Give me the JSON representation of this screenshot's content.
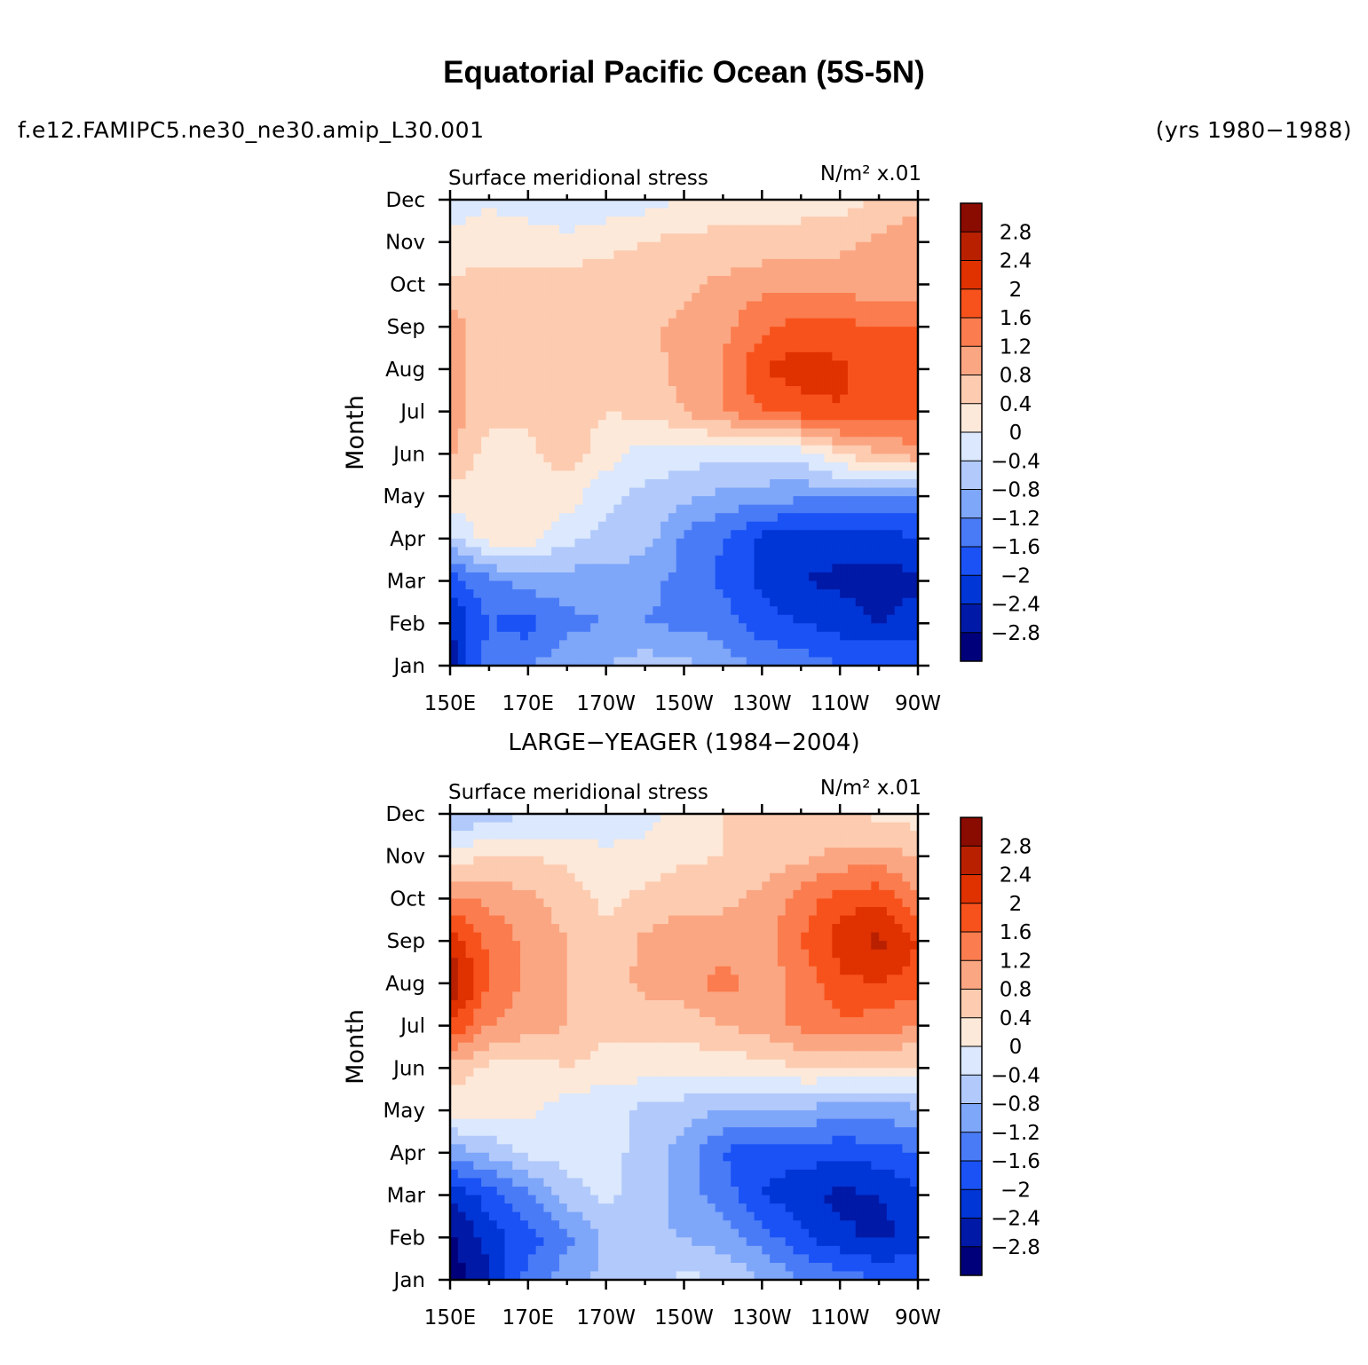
{
  "header": {
    "title": "Equatorial Pacific Ocean (5S-5N)",
    "case_name": "f.e12.FAMIPC5.ne30_ne30.amip_L30.001",
    "years": "(yrs 1980−1988)"
  },
  "observations_title": "LARGE−YEAGER (1984−2004)",
  "colormap": [
    "#00007a",
    "#0019a6",
    "#0035d6",
    "#1a52f5",
    "#4a7bf7",
    "#7ea6f9",
    "#b2c9fb",
    "#dbe8fd",
    "#fde9d9",
    "#fdcbb0",
    "#fba682",
    "#fb7c4e",
    "#f8521c",
    "#e03100",
    "#b82000",
    "#8a0b00"
  ],
  "chart_data": [
    {
      "type": "heatmap",
      "panel": "model",
      "title_left": "Surface meridional stress",
      "units": "N/m² x.01",
      "ylabel": "Month",
      "x_ticklabels": [
        "150E",
        "170E",
        "170W",
        "150W",
        "130W",
        "110W",
        "90W"
      ],
      "x_ticks_deg_east": [
        150,
        170,
        190,
        210,
        230,
        250,
        270
      ],
      "xlim": [
        150,
        270
      ],
      "y_ticklabels": [
        "Jan",
        "Feb",
        "Mar",
        "Apr",
        "May",
        "Jun",
        "Jul",
        "Aug",
        "Sep",
        "Oct",
        "Nov",
        "Dec"
      ],
      "contour_levels": [
        -2.8,
        -2.4,
        -2,
        -1.6,
        -1.2,
        -0.8,
        -0.4,
        0,
        0.4,
        0.8,
        1.2,
        1.6,
        2,
        2.4,
        2.8
      ],
      "colorbar_labels": [
        "2.8",
        "2.4",
        "2",
        "1.6",
        "1.2",
        "0.8",
        "0.4",
        "0",
        "−0.4",
        "−0.8",
        "−1.2",
        "−1.6",
        "−2",
        "−2.4",
        "−2.8"
      ],
      "longitudes": [
        150,
        160,
        170,
        180,
        190,
        200,
        210,
        220,
        230,
        240,
        250,
        260,
        270
      ],
      "values": [
        [
          -2.6,
          -1.4,
          -1.2,
          -1.0,
          -0.8,
          -0.6,
          -0.7,
          -1.0,
          -1.3,
          -1.4,
          -1.6,
          -1.6,
          -1.8
        ],
        [
          -2.4,
          -1.6,
          -1.8,
          -1.3,
          -1.2,
          -1.2,
          -1.3,
          -1.4,
          -1.8,
          -2.0,
          -2.2,
          -2.4,
          -2.2
        ],
        [
          -1.8,
          -1.3,
          -1.0,
          -1.0,
          -1.0,
          -1.1,
          -1.3,
          -1.7,
          -2.1,
          -2.4,
          -2.5,
          -2.6,
          -2.5
        ],
        [
          -0.5,
          0.2,
          0.2,
          -0.3,
          -0.5,
          -0.6,
          -1.3,
          -1.6,
          -2.1,
          -2.3,
          -2.2,
          -2.2,
          -2.0
        ],
        [
          0.2,
          0.3,
          0.3,
          0.2,
          -0.3,
          -0.5,
          -0.7,
          -0.9,
          -1.0,
          -1.1,
          -1.1,
          -1.2,
          -1.3
        ],
        [
          0.9,
          0.2,
          0.3,
          0.6,
          0.2,
          -0.2,
          -0.2,
          -0.3,
          -0.3,
          -0.2,
          0.4,
          0.8,
          1.1
        ],
        [
          1.0,
          0.5,
          0.5,
          0.6,
          0.4,
          0.5,
          0.8,
          1.2,
          1.6,
          1.8,
          2.0,
          1.7,
          1.7
        ],
        [
          1.0,
          0.5,
          0.5,
          0.6,
          0.6,
          0.7,
          0.9,
          1.2,
          2.0,
          2.2,
          2.1,
          1.7,
          1.8
        ],
        [
          1.0,
          0.5,
          0.5,
          0.6,
          0.6,
          0.7,
          0.9,
          1.1,
          1.5,
          1.8,
          1.7,
          1.6,
          1.6
        ],
        [
          0.5,
          0.5,
          0.5,
          0.6,
          0.6,
          0.6,
          0.7,
          0.9,
          1.1,
          1.1,
          1.0,
          1.0,
          1.0
        ],
        [
          0.1,
          0.3,
          0.2,
          0.1,
          0.3,
          0.4,
          0.5,
          0.5,
          0.5,
          0.6,
          0.7,
          0.9,
          1.0
        ],
        [
          -0.2,
          -0.1,
          -0.2,
          -0.3,
          -0.3,
          -0.2,
          0.1,
          0.2,
          0.2,
          0.2,
          0.2,
          0.5,
          0.7
        ]
      ]
    },
    {
      "type": "heatmap",
      "panel": "observations",
      "title_left": "Surface meridional stress",
      "units": "N/m² x.01",
      "ylabel": "Month",
      "x_ticklabels": [
        "150E",
        "170E",
        "170W",
        "150W",
        "130W",
        "110W",
        "90W"
      ],
      "x_ticks_deg_east": [
        150,
        170,
        190,
        210,
        230,
        250,
        270
      ],
      "xlim": [
        150,
        270
      ],
      "y_ticklabels": [
        "Jan",
        "Feb",
        "Mar",
        "Apr",
        "May",
        "Jun",
        "Jul",
        "Aug",
        "Sep",
        "Oct",
        "Nov",
        "Dec"
      ],
      "contour_levels": [
        -2.8,
        -2.4,
        -2,
        -1.6,
        -1.2,
        -0.8,
        -0.4,
        0,
        0.4,
        0.8,
        1.2,
        1.6,
        2,
        2.4,
        2.8
      ],
      "colorbar_labels": [
        "2.8",
        "2.4",
        "2",
        "1.6",
        "1.2",
        "0.8",
        "0.4",
        "0",
        "−0.4",
        "−0.8",
        "−1.2",
        "−1.6",
        "−2",
        "−2.4",
        "−2.8"
      ],
      "longitudes": [
        150,
        160,
        170,
        180,
        190,
        200,
        210,
        220,
        230,
        240,
        250,
        260,
        270
      ],
      "values": [
        [
          -3.0,
          -2.5,
          -1.4,
          -1.0,
          -0.7,
          -0.5,
          -0.3,
          -0.4,
          -0.8,
          -1.2,
          -1.4,
          -1.6,
          -1.6
        ],
        [
          -2.9,
          -2.2,
          -1.8,
          -1.3,
          -0.7,
          -0.7,
          -0.8,
          -1.0,
          -1.4,
          -1.9,
          -2.3,
          -2.5,
          -2.3
        ],
        [
          -2.4,
          -1.8,
          -1.3,
          -0.6,
          -0.3,
          -0.6,
          -1.0,
          -1.4,
          -2.0,
          -2.3,
          -2.5,
          -2.4,
          -2.1
        ],
        [
          -1.0,
          -0.7,
          -0.3,
          -0.2,
          -0.3,
          -0.5,
          -1.0,
          -1.6,
          -1.9,
          -1.8,
          -1.9,
          -1.8,
          -1.6
        ],
        [
          0.1,
          0.2,
          0.1,
          -0.2,
          -0.3,
          -0.5,
          -0.6,
          -0.8,
          -0.9,
          -0.9,
          -1.0,
          -1.0,
          -0.9
        ],
        [
          0.7,
          0.3,
          0.2,
          0.4,
          0.2,
          0.2,
          0.1,
          0.1,
          0.2,
          0.4,
          0.4,
          0.4,
          0.3
        ],
        [
          2.0,
          1.2,
          1.0,
          0.8,
          0.5,
          0.6,
          0.6,
          0.8,
          1.0,
          1.3,
          1.5,
          1.4,
          1.2
        ],
        [
          2.8,
          1.6,
          1.1,
          0.8,
          0.6,
          0.9,
          1.0,
          1.4,
          1.0,
          1.3,
          1.9,
          2.0,
          1.8
        ],
        [
          2.2,
          1.5,
          1.1,
          0.8,
          0.5,
          0.9,
          1.0,
          1.0,
          1.0,
          1.6,
          2.2,
          2.5,
          2.0
        ],
        [
          1.3,
          1.1,
          0.9,
          0.6,
          0.3,
          0.5,
          0.7,
          0.7,
          0.9,
          1.4,
          1.8,
          1.9,
          1.3
        ],
        [
          0.2,
          0.4,
          0.4,
          0.3,
          0.1,
          0.2,
          0.3,
          0.4,
          0.5,
          0.7,
          0.9,
          1.0,
          0.8
        ],
        [
          -0.8,
          -0.6,
          -0.4,
          -0.4,
          -0.3,
          -0.2,
          0.2,
          0.4,
          0.5,
          0.5,
          0.5,
          0.3,
          0.2
        ]
      ]
    }
  ]
}
